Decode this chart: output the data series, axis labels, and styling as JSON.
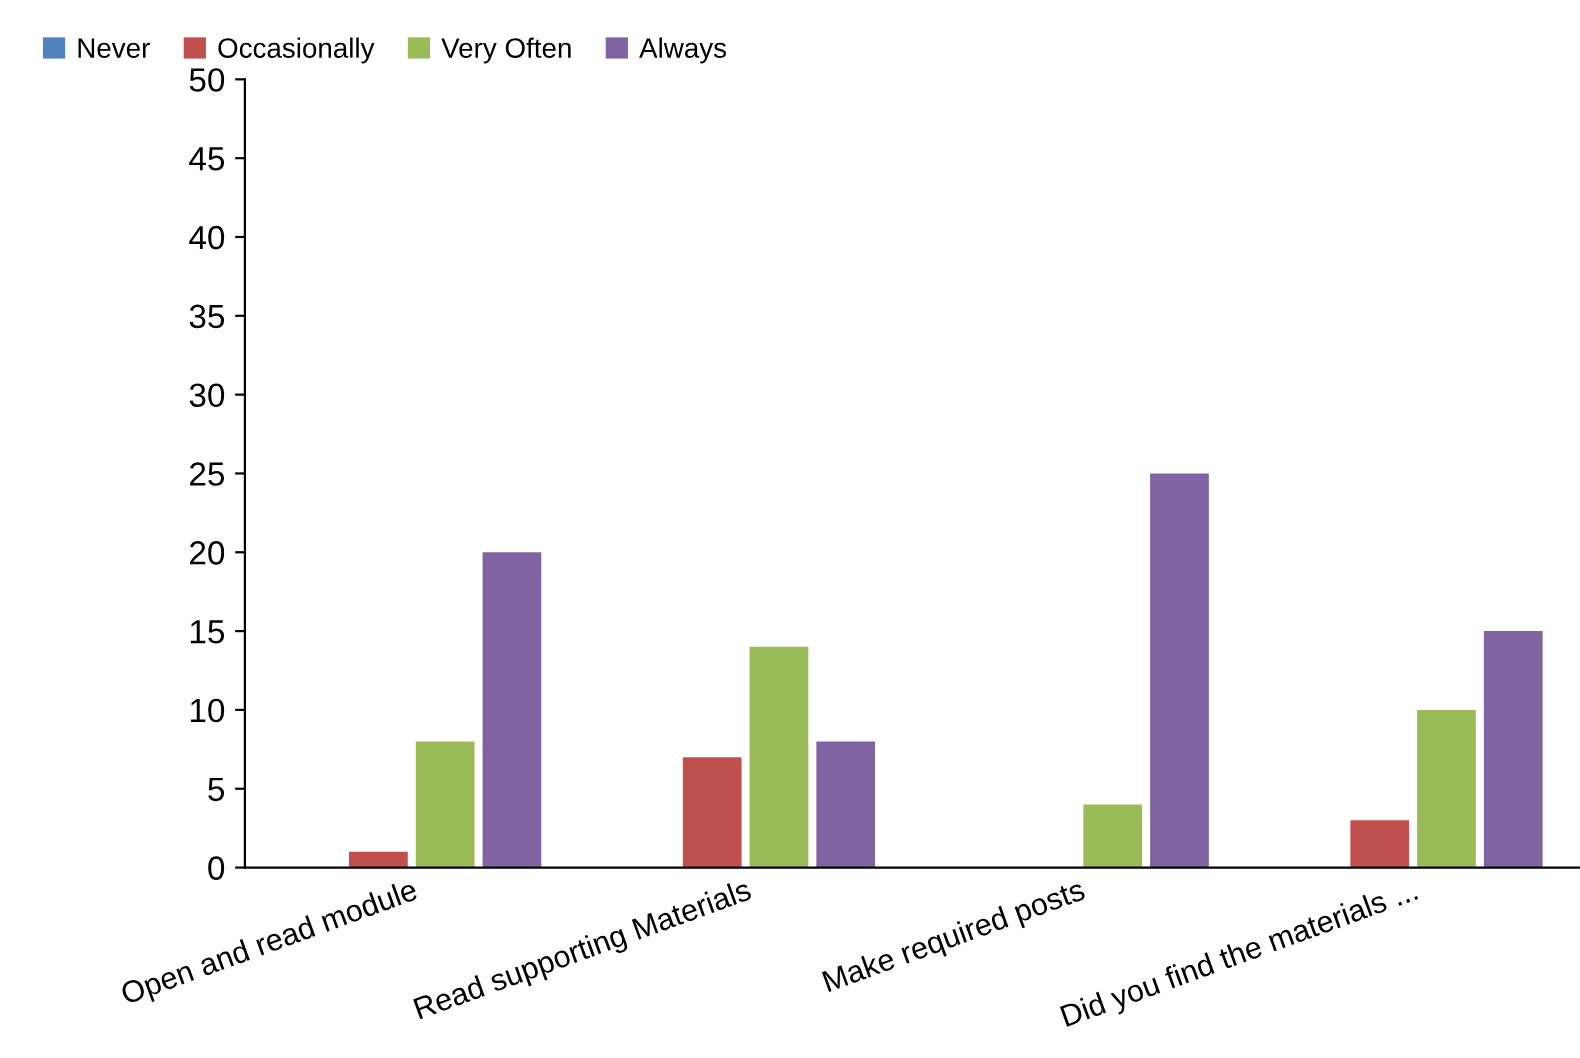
{
  "chart_data": {
    "type": "bar",
    "categories": [
      "Open and read module",
      "Read supporting Materials",
      "Make required posts",
      "Did you find the materials ..."
    ],
    "series": [
      {
        "name": "Never",
        "color": "#4f81bd",
        "values": [
          0,
          0,
          0,
          0
        ]
      },
      {
        "name": "Occasionally",
        "color": "#c0504d",
        "values": [
          1,
          7,
          0,
          3
        ]
      },
      {
        "name": "Very Often",
        "color": "#9bbb59",
        "values": [
          8,
          14,
          4,
          10
        ]
      },
      {
        "name": "Always",
        "color": "#8064a2",
        "values": [
          20,
          8,
          25,
          15
        ]
      }
    ],
    "ylim": [
      0,
      50
    ],
    "yticks": [
      0,
      5,
      10,
      15,
      20,
      25,
      30,
      35,
      40,
      45,
      50
    ],
    "grid": false,
    "legend": "top left"
  }
}
